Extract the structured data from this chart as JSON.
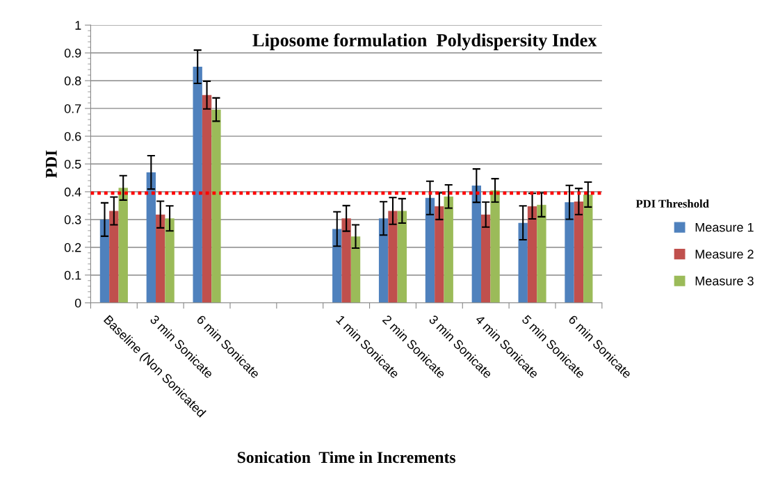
{
  "chart_data": {
    "type": "bar",
    "title": "Liposome formulation  Polydispersity Index",
    "xlabel": "Sonication  Time in Increments",
    "ylabel": "PDI",
    "categories": [
      "Baseline (Non Sonicated",
      "3 min Sonicate",
      "6 min Sonicate",
      null,
      null,
      "1 min Sonicate",
      "2 min Sonicate",
      "3 min Sonicate",
      "4 min Sonicate",
      "5 min Sonicate",
      "6 min Sonicate"
    ],
    "series": [
      {
        "name": "Measure 1",
        "color": "#4f81bd",
        "values": [
          0.3,
          0.47,
          0.85,
          null,
          null,
          0.266,
          0.304,
          0.378,
          0.422,
          0.288,
          0.362
        ],
        "errors": [
          0.06,
          0.06,
          0.06,
          null,
          null,
          0.062,
          0.06,
          0.06,
          0.06,
          0.061,
          0.061
        ]
      },
      {
        "name": "Measure 2",
        "color": "#c0504d",
        "values": [
          0.331,
          0.318,
          0.748,
          null,
          null,
          0.304,
          0.331,
          0.348,
          0.318,
          0.348,
          0.365
        ],
        "errors": [
          0.05,
          0.048,
          0.05,
          null,
          null,
          0.046,
          0.048,
          0.048,
          0.045,
          0.046,
          0.047
        ]
      },
      {
        "name": "Measure 3",
        "color": "#9bbb59",
        "values": [
          0.414,
          0.304,
          0.696,
          null,
          null,
          0.239,
          0.331,
          0.383,
          0.405,
          0.353,
          0.39
        ],
        "errors": [
          0.044,
          0.045,
          0.042,
          null,
          null,
          0.042,
          0.044,
          0.042,
          0.042,
          0.043,
          0.045
        ]
      }
    ],
    "ref_lines": [
      {
        "axis": "y",
        "value": 0.395,
        "label": "PDI Threshold",
        "color": "#ff0000",
        "line_style": "dotted"
      }
    ],
    "ylim": [
      0,
      1
    ],
    "yticks": [
      0,
      0.1,
      0.2,
      0.3,
      0.4,
      0.5,
      0.6,
      0.7,
      0.8,
      0.9,
      1
    ],
    "grid": "y",
    "legend": "right"
  }
}
